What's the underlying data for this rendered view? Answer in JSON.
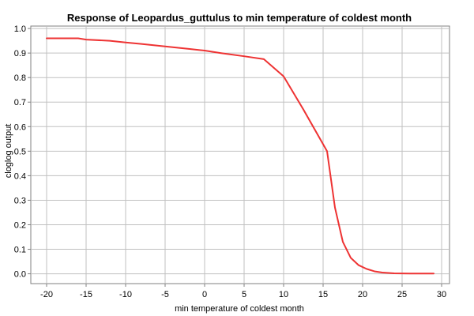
{
  "chart_data": {
    "type": "line",
    "title": "Response of Leopardus_guttulus to min temperature of coldest month",
    "xlabel": "min temperature of coldest month",
    "ylabel": "cloglog output",
    "xlim": [
      -22,
      31
    ],
    "ylim": [
      -0.04,
      1.01
    ],
    "xticks": [
      -20,
      -15,
      -10,
      -5,
      0,
      5,
      10,
      15,
      20,
      25,
      30
    ],
    "yticks": [
      0.0,
      0.1,
      0.2,
      0.3,
      0.4,
      0.5,
      0.6,
      0.7,
      0.8,
      0.9,
      1.0
    ],
    "ytick_labels": [
      "0.0",
      "0.1",
      "0.2",
      "0.3",
      "0.4",
      "0.5",
      "0.6",
      "0.7",
      "0.8",
      "0.9",
      "1.0"
    ],
    "grid": true,
    "legend": "none",
    "series": [
      {
        "color": "#ee3333",
        "x": [
          -20,
          -16,
          -15,
          -12,
          -10,
          -8,
          -5,
          -2,
          0,
          2,
          5,
          7.5,
          10,
          12.5,
          15.5,
          16.5,
          17.5,
          18.5,
          19.5,
          20.5,
          21.5,
          22.5,
          24,
          26,
          29
        ],
        "y": [
          0.96,
          0.96,
          0.955,
          0.95,
          0.943,
          0.937,
          0.927,
          0.917,
          0.91,
          0.9,
          0.887,
          0.875,
          0.805,
          0.67,
          0.5,
          0.27,
          0.13,
          0.065,
          0.035,
          0.02,
          0.01,
          0.005,
          0.002,
          0.001,
          0.001
        ]
      }
    ]
  }
}
